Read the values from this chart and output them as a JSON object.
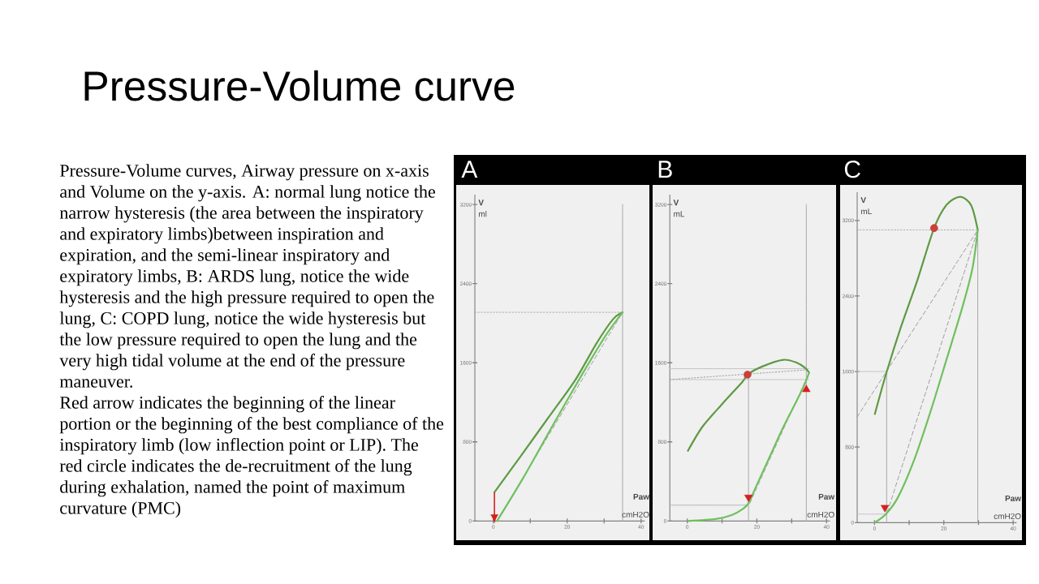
{
  "chart_data": [
    {
      "type": "other",
      "title": "Pressure-Volume curve",
      "annotations": [
        "Pressure-Volume curves, Airway pressure on x-axis and Volume on the y-axis. A: normal lung notice the narrow hysteresis (the area between the inspiratory and expiratory limbs)between inspiration and expiration, and the semi-linear inspiratory and expiratory limbs, B: ARDS lung, notice the wide hysteresis and the high pressure required to open the lung, C: COPD lung, notice the wide hysteresis but the low pressure required to open the lung and the very high tidal volume at the end of the pressure maneuver.",
        "Red arrow indicates the beginning of the linear portion or the beginning of the best compliance of the inspiratory limb (low inflection point or LIP). The red circle indicates the de-recruitment of the lung during exhalation, named the point of maximum curvature (PMC)"
      ]
    },
    {
      "type": "line",
      "title": "A",
      "xlabel": "**Paw** cmH2O",
      "ylabel": "**V** ml",
      "xlim": [
        -5,
        41
      ],
      "ylim": [
        0,
        3300
      ],
      "xticks": [
        0,
        20,
        40
      ],
      "yticks": [
        0,
        800,
        1600,
        2400,
        3200
      ],
      "series": [
        {
          "x": [
            35,
            35
          ],
          "values": [
            0,
            3200
          ],
          "color": "#a8a8a8",
          "line_style": "solid"
        },
        {
          "x": [
            -5,
            35
          ],
          "values": [
            2110,
            2110
          ],
          "color": "#a8a8a8",
          "line_style": "dotted"
        },
        {
          "x": [
            1,
            35
          ],
          "values": [
            0,
            2110
          ],
          "color": "#9a9a9a",
          "line_style": "dashed"
        },
        {
          "x": [
            0.3,
            7.5,
            14.8,
            22.1,
            28.0,
            32.4,
            35
          ],
          "values": [
            290,
            660,
            1040,
            1420,
            1800,
            2040,
            2110
          ],
          "color": "#5e9a43",
          "line_style": "solid"
        },
        {
          "x": [
            1,
            8,
            16,
            24,
            30.5,
            35
          ],
          "values": [
            0,
            430,
            960,
            1480,
            1880,
            2110
          ],
          "color": "#6fc05e",
          "line_style": "solid"
        }
      ]
    },
    {
      "type": "line",
      "title": "B",
      "xlabel": "**Paw** cmH2O",
      "ylabel": "**V** mL",
      "xlim": [
        -5,
        41
      ],
      "ylim": [
        0,
        3300
      ],
      "xticks": [
        0,
        20,
        40
      ],
      "yticks": [
        0,
        800,
        1600,
        2400,
        3200
      ],
      "series": [
        {
          "x": [
            34.2,
            34.2
          ],
          "values": [
            0,
            3200
          ],
          "color": "#a8a8a8",
          "line_style": "solid"
        },
        {
          "x": [
            17.6,
            17.6
          ],
          "values": [
            0,
            1480
          ],
          "color": "#a8a8a8",
          "line_style": "solid"
        },
        {
          "x": [
            -5,
            35
          ],
          "values": [
            1540,
            1540
          ],
          "color": "#c4c4c4",
          "line_style": "solid"
        },
        {
          "x": [
            -5,
            35
          ],
          "values": [
            1430,
            1430
          ],
          "color": "#c4c4c4",
          "line_style": "solid"
        },
        {
          "x": [
            -5,
            35
          ],
          "values": [
            1430,
            1530
          ],
          "color": "#999999",
          "line_style": "dotted"
        },
        {
          "x": [
            -5,
            17.6
          ],
          "values": [
            160,
            160
          ],
          "color": "#b4b4b4",
          "line_style": "solid"
        },
        {
          "x": [
            18,
            35
          ],
          "values": [
            180,
            1500
          ],
          "color": "#a8a8a8",
          "line_style": "dashed"
        },
        {
          "x": [
            0.2,
            4.3,
            9.7,
            15.9,
            17.3,
            21.4,
            27.6,
            31.5,
            33.8,
            35
          ],
          "values": [
            710,
            950,
            1170,
            1410,
            1480,
            1560,
            1630,
            1600,
            1550,
            1500
          ],
          "color": "#5e9a43",
          "line_style": "solid"
        },
        {
          "x": [
            0.2,
            8.2,
            12.8,
            15.9,
            17.6,
            19.8,
            23.7,
            27.6,
            31.5,
            33.8,
            35
          ],
          "values": [
            0,
            20,
            60,
            120,
            180,
            350,
            650,
            950,
            1220,
            1390,
            1500
          ],
          "color": "#6fc05e",
          "line_style": "solid"
        },
        {
          "type": "scatter",
          "x": [
            17.3
          ],
          "values": [
            1480
          ],
          "color": "#c8413a",
          "marker": "circle"
        },
        {
          "type": "scatter",
          "x": [
            17.6,
            34.2
          ],
          "values": [
            240,
            1330
          ],
          "color": "#d42020",
          "marker": "triangle"
        }
      ]
    },
    {
      "type": "line",
      "title": "C",
      "xlabel": "**Paw** cmH2O",
      "ylabel": "**V** mL",
      "xlim": [
        -5,
        41
      ],
      "ylim": [
        0,
        3500
      ],
      "xticks": [
        0,
        20,
        40
      ],
      "yticks": [
        0,
        800,
        1600,
        2400,
        3200
      ],
      "series": [
        {
          "x": [
            -5,
            29.8
          ],
          "values": [
            3100,
            3100
          ],
          "color": "#a8a8a8",
          "line_style": "dotted"
        },
        {
          "x": [
            29.8,
            29.8
          ],
          "values": [
            0,
            3100
          ],
          "color": "#a8a8a8",
          "line_style": "solid"
        },
        {
          "x": [
            3.5,
            3.5
          ],
          "values": [
            0,
            1600
          ],
          "color": "#a8a8a8",
          "line_style": "solid"
        },
        {
          "x": [
            -5,
            3.5
          ],
          "values": [
            1600,
            1600
          ],
          "color": "#c4c4c4",
          "line_style": "solid"
        },
        {
          "x": [
            -5,
            3.5
          ],
          "values": [
            90,
            90
          ],
          "color": "#c4c4c4",
          "line_style": "solid"
        },
        {
          "x": [
            -5,
            29.8
          ],
          "values": [
            1120,
            3100
          ],
          "color": "#9a9a9a",
          "line_style": "dashed"
        },
        {
          "x": [
            3.7,
            29.8
          ],
          "values": [
            110,
            3100
          ],
          "color": "#9a9a9a",
          "line_style": "dashed"
        },
        {
          "x": [
            0.1,
            3.3,
            7.6,
            12.3,
            17.2,
            20.9,
            24.8,
            27.9,
            29.8
          ],
          "values": [
            1150,
            1570,
            2070,
            2560,
            3120,
            3370,
            3450,
            3360,
            3100
          ],
          "color": "#5e9a43",
          "line_style": "solid"
        },
        {
          "x": [
            0.1,
            3.3,
            6.8,
            11.5,
            16.2,
            20.8,
            25.5,
            28.3,
            29.8
          ],
          "values": [
            0,
            90,
            270,
            670,
            1180,
            1730,
            2300,
            2700,
            3100
          ],
          "color": "#6fc05e",
          "line_style": "solid"
        },
        {
          "type": "scatter",
          "x": [
            17.2
          ],
          "values": [
            3120
          ],
          "color": "#c8413a",
          "marker": "circle"
        },
        {
          "type": "scatter",
          "x": [
            3.0
          ],
          "values": [
            160
          ],
          "color": "#d42020",
          "marker": "triangle"
        }
      ]
    }
  ]
}
